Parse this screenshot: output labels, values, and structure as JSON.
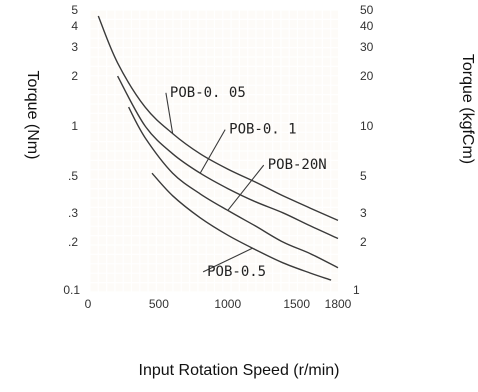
{
  "chart_data": {
    "type": "line",
    "xlabel": "Input Rotation Speed (r/min)",
    "ylabel_left": "Torque (Nm)",
    "ylabel_right": "Torque (kgfCm)",
    "x_scale": "linear",
    "y_scale": "log",
    "xlim": [
      0,
      1800
    ],
    "ylim": [
      0.1,
      5
    ],
    "x_ticks": [
      "0",
      "500",
      "1000",
      "1500",
      "1800"
    ],
    "x_tick_values": [
      0,
      500,
      1000,
      1500,
      1800
    ],
    "y_left_ticks": [
      "0.1",
      ".2",
      ".3",
      ".5",
      "1",
      "2",
      "3",
      "4",
      "5"
    ],
    "y_left_tick_values": [
      0.1,
      0.2,
      0.3,
      0.5,
      1,
      2,
      3,
      4,
      5
    ],
    "y_right_ticks": [
      "1",
      "2",
      "3",
      "5",
      "10",
      "20",
      "30",
      "40",
      "50"
    ],
    "y_right_tick_values": [
      0.1,
      0.2,
      0.3,
      0.5,
      1,
      2,
      3,
      4,
      5
    ],
    "grid": true,
    "colors": {
      "background": "#fdfbf8",
      "grid": "#ffffff",
      "line": "#3a3a3a",
      "text": "#333333"
    },
    "series": [
      {
        "name": "POB-0. 05",
        "x": [
          60,
          200,
          400,
          600,
          800,
          1000,
          1200,
          1400,
          1600,
          1800
        ],
        "y": [
          4.6,
          2.4,
          1.3,
          0.9,
          0.68,
          0.55,
          0.46,
          0.38,
          0.32,
          0.27
        ]
      },
      {
        "name": "POB-0. 1",
        "x": [
          200,
          400,
          600,
          800,
          1000,
          1200,
          1400,
          1600,
          1800
        ],
        "y": [
          2.0,
          1.0,
          0.68,
          0.52,
          0.42,
          0.35,
          0.3,
          0.25,
          0.21
        ]
      },
      {
        "name": "POB-20N",
        "x": [
          280,
          400,
          600,
          800,
          1000,
          1200,
          1400,
          1600,
          1800
        ],
        "y": [
          1.3,
          0.85,
          0.52,
          0.39,
          0.31,
          0.25,
          0.2,
          0.17,
          0.14
        ]
      },
      {
        "name": "POB-0.5",
        "x": [
          450,
          600,
          800,
          1000,
          1200,
          1400,
          1600,
          1750
        ],
        "y": [
          0.52,
          0.38,
          0.28,
          0.22,
          0.18,
          0.15,
          0.13,
          0.118
        ]
      }
    ],
    "annotations": [
      {
        "text": "POB-0. 05",
        "series": 0,
        "x": 580,
        "y": 1.5
      },
      {
        "text": "POB-0. 1",
        "series": 1,
        "x": 1010,
        "y": 0.9
      },
      {
        "text": "POB-20N",
        "series": 2,
        "x": 1290,
        "y": 0.55
      },
      {
        "text": "POB-0.5",
        "series": 3,
        "x": 850,
        "y": 0.125
      }
    ]
  }
}
